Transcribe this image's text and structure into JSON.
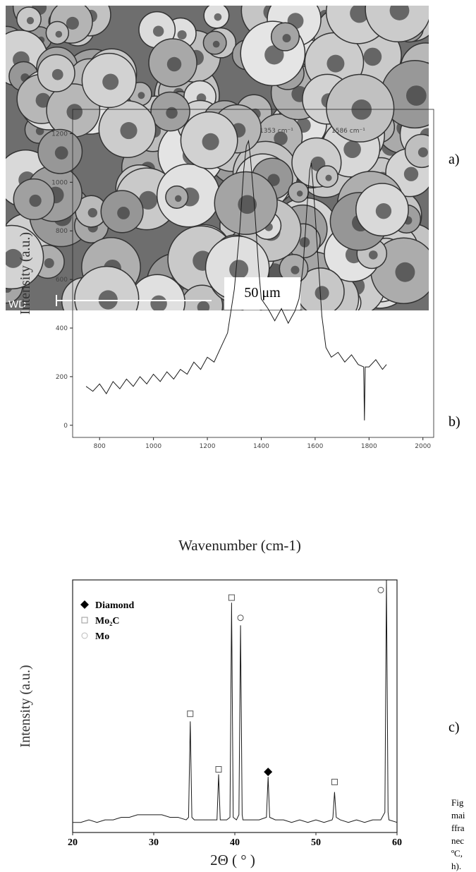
{
  "image": {
    "scale_label": "50 μm",
    "corner_label": "WD"
  },
  "panel_labels": [
    "a)",
    "b)",
    "c)"
  ],
  "caption_lines": [
    "Fig",
    "mai",
    "ffra",
    "nec",
    "ºC,",
    "h)."
  ],
  "chart_data": [
    {
      "type": "line",
      "y_label": "Intensity (a.u.)",
      "x_label": "Wavenumber (cm-1)",
      "annotations": [
        "1353 cm⁻¹",
        "1586 cm⁻¹"
      ],
      "color": "#1a1a1a",
      "x": [
        750,
        775,
        800,
        825,
        850,
        875,
        900,
        925,
        950,
        975,
        1000,
        1025,
        1050,
        1075,
        1100,
        1125,
        1150,
        1175,
        1200,
        1225,
        1250,
        1275,
        1300,
        1320,
        1335,
        1345,
        1353,
        1360,
        1375,
        1390,
        1400,
        1425,
        1450,
        1475,
        1500,
        1525,
        1540,
        1555,
        1570,
        1580,
        1586,
        1595,
        1610,
        1625,
        1640,
        1660,
        1685,
        1710,
        1735,
        1760,
        1780,
        1783,
        1786,
        1800,
        1825,
        1850,
        1865
      ],
      "values": [
        160,
        140,
        170,
        130,
        180,
        150,
        190,
        160,
        200,
        170,
        210,
        180,
        220,
        190,
        230,
        210,
        260,
        230,
        280,
        260,
        320,
        380,
        560,
        800,
        1050,
        1150,
        1170,
        1100,
        900,
        650,
        520,
        480,
        430,
        480,
        420,
        470,
        520,
        650,
        900,
        1050,
        1080,
        950,
        700,
        450,
        320,
        280,
        300,
        260,
        290,
        250,
        240,
        20,
        240,
        240,
        270,
        230,
        250
      ],
      "xlim": [
        700,
        2040
      ],
      "xticks": [
        800,
        1000,
        1200,
        1400,
        1600,
        1800,
        2000
      ],
      "ylim": [
        -50,
        1300
      ],
      "yticks": [
        0,
        200,
        400,
        600,
        800,
        1000,
        1200
      ]
    },
    {
      "type": "line",
      "y_label": "Intensity (a.u.)",
      "x_label": "2Θ ( ° )",
      "color": "#1a1a1a",
      "x": [
        20,
        21,
        22,
        23,
        24,
        25,
        26,
        27,
        28,
        29,
        30,
        31,
        32,
        33,
        34,
        34.3,
        34.5,
        34.7,
        35,
        36,
        37,
        37.8,
        38,
        38.2,
        39,
        39.4,
        39.6,
        39.8,
        40.2,
        40.5,
        40.7,
        40.9,
        41,
        42,
        43,
        43.9,
        44.1,
        44.3,
        45,
        46,
        47,
        48,
        49,
        50,
        51,
        52,
        52.1,
        52.3,
        52.5,
        53,
        54,
        55,
        56,
        57,
        58,
        58.5,
        58.7,
        58.9,
        59,
        60
      ],
      "values": [
        4,
        4,
        5,
        4,
        5,
        5,
        6,
        6,
        7,
        7,
        7,
        7,
        6,
        6,
        5,
        6,
        44,
        6,
        5,
        5,
        5,
        5,
        23,
        5,
        5,
        6,
        91,
        6,
        5,
        7,
        82,
        7,
        5,
        5,
        5,
        6,
        22,
        6,
        5,
        5,
        4,
        5,
        4,
        5,
        4,
        5,
        6,
        16,
        6,
        5,
        4,
        5,
        4,
        5,
        5,
        8,
        100,
        8,
        5,
        4
      ],
      "xlim": [
        20,
        60
      ],
      "xticks": [
        20,
        30,
        40,
        50,
        60
      ],
      "ylim": [
        0,
        100
      ],
      "series": [
        {
          "name": "Diamond",
          "marker": "diamond",
          "color": "#000000",
          "x": [
            44.1
          ],
          "values": [
            24
          ]
        },
        {
          "name": "Mo₂C",
          "marker": "square",
          "color": "#555555",
          "x": [
            34.5,
            38,
            39.6,
            52.3
          ],
          "values": [
            47,
            25,
            93,
            20
          ]
        },
        {
          "name": "Mo",
          "marker": "circle",
          "color": "#555555",
          "x": [
            40.7,
            58
          ],
          "values": [
            85,
            96
          ]
        }
      ]
    }
  ]
}
